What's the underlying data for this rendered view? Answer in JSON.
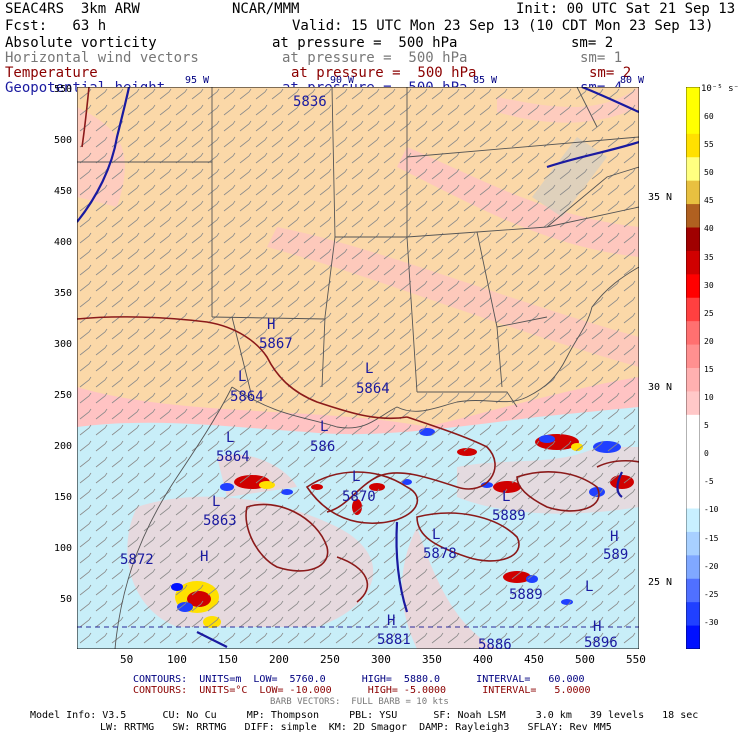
{
  "header": {
    "model": "SEAC4RS  3km ARW",
    "org": "NCAR/MMM",
    "init": "Init: 00 UTC Sat 21 Sep 13",
    "fcst": "Fcst:   63 h",
    "valid": "Valid: 15 UTC Mon 23 Sep 13 (10 CDT Mon 23 Sep 13)"
  },
  "fields": [
    {
      "name": "Absolute vorticity",
      "pressure": "at pressure =  500 hPa",
      "sm": "sm= 2",
      "color": "#000000"
    },
    {
      "name": "Horizontal wind vectors",
      "pressure": "at pressure =  500 hPa",
      "sm": "sm= 1",
      "color": "#777777"
    },
    {
      "name": "Temperature",
      "pressure": "at pressure =  500 hPa",
      "sm": "sm= 2",
      "color": "#8b0000"
    },
    {
      "name": "Geopotential height",
      "pressure": "at pressure =  500 hPa",
      "sm": "sm= 4",
      "color": "#1a1aa0"
    }
  ],
  "axes": {
    "y_ticks": [
      "550",
      "500",
      "450",
      "400",
      "350",
      "300",
      "250",
      "200",
      "150",
      "100",
      "50"
    ],
    "x_ticks": [
      "50",
      "100",
      "150",
      "200",
      "250",
      "300",
      "350",
      "400",
      "450",
      "500",
      "550"
    ],
    "lon_labels": [
      "95 W",
      "90 W",
      "85 W",
      "80 W"
    ],
    "lat_labels": [
      "35 N",
      "30 N",
      "25 N"
    ]
  },
  "map_labels": [
    {
      "text": "5836"
    },
    {
      "text": "H"
    },
    {
      "text": "5867"
    },
    {
      "text": "L"
    },
    {
      "text": "5864"
    },
    {
      "text": "L"
    },
    {
      "text": "5864"
    },
    {
      "text": "L"
    },
    {
      "text": "5864"
    },
    {
      "text": "L"
    },
    {
      "text": "586"
    },
    {
      "text": "L"
    },
    {
      "text": "5870"
    },
    {
      "text": "L"
    },
    {
      "text": "5863"
    },
    {
      "text": "L"
    },
    {
      "text": "5889"
    },
    {
      "text": "L"
    },
    {
      "text": "5878"
    },
    {
      "text": "H"
    },
    {
      "text": "5872"
    },
    {
      "text": "H"
    },
    {
      "text": "5881"
    },
    {
      "text": "H"
    },
    {
      "text": "5896"
    },
    {
      "text": "H"
    },
    {
      "text": "589"
    },
    {
      "text": "L"
    },
    {
      "text": "5889"
    },
    {
      "text": "5886"
    }
  ],
  "colorbar": {
    "unit": "10⁻⁵ s⁻¹",
    "labels": [
      "60",
      "55",
      "50",
      "45",
      "40",
      "35",
      "30",
      "25",
      "20",
      "15",
      "10",
      "5",
      "0",
      "-5",
      "-10",
      "-15",
      "-20",
      "-25",
      "-30"
    ],
    "colors": [
      "#ffff00",
      "#ffff00",
      "#ffe000",
      "#ffff80",
      "#e8c040",
      "#b06020",
      "#a00000",
      "#d00000",
      "#ff0000",
      "#ff4040",
      "#ff7070",
      "#ff9090",
      "#ffb0b0",
      "#ffc8c8",
      "#ffffff",
      "#ffffff",
      "#ffffff",
      "#ffffff",
      "#c8f0ff",
      "#a8d0ff",
      "#80a8ff",
      "#5070ff",
      "#2040ff",
      "#0010ff"
    ]
  },
  "footer": {
    "contours_height": "CONTOURS:  UNITS=m  LOW=  5760.0      HIGH=  5880.0      INTERVAL=   60.000",
    "contours_temp": "CONTOURS:  UNITS=°C  LOW= -10.000      HIGH= -5.0000      INTERVAL=   5.0000",
    "barb": "BARB VECTORS:  FULL BARB = 10 kts",
    "model_info_1": "Model Info: V3.5      CU: No Cu     MP: Thompson     PBL: YSU      SF: Noah LSM     3.0 km   39 levels   18 sec",
    "model_info_2": "LW: RRTMG   SW: RRTMG   DIFF: simple  KM: 2D Smagor  DAMP: Rayleigh3   SFLAY: Rev MM5"
  }
}
